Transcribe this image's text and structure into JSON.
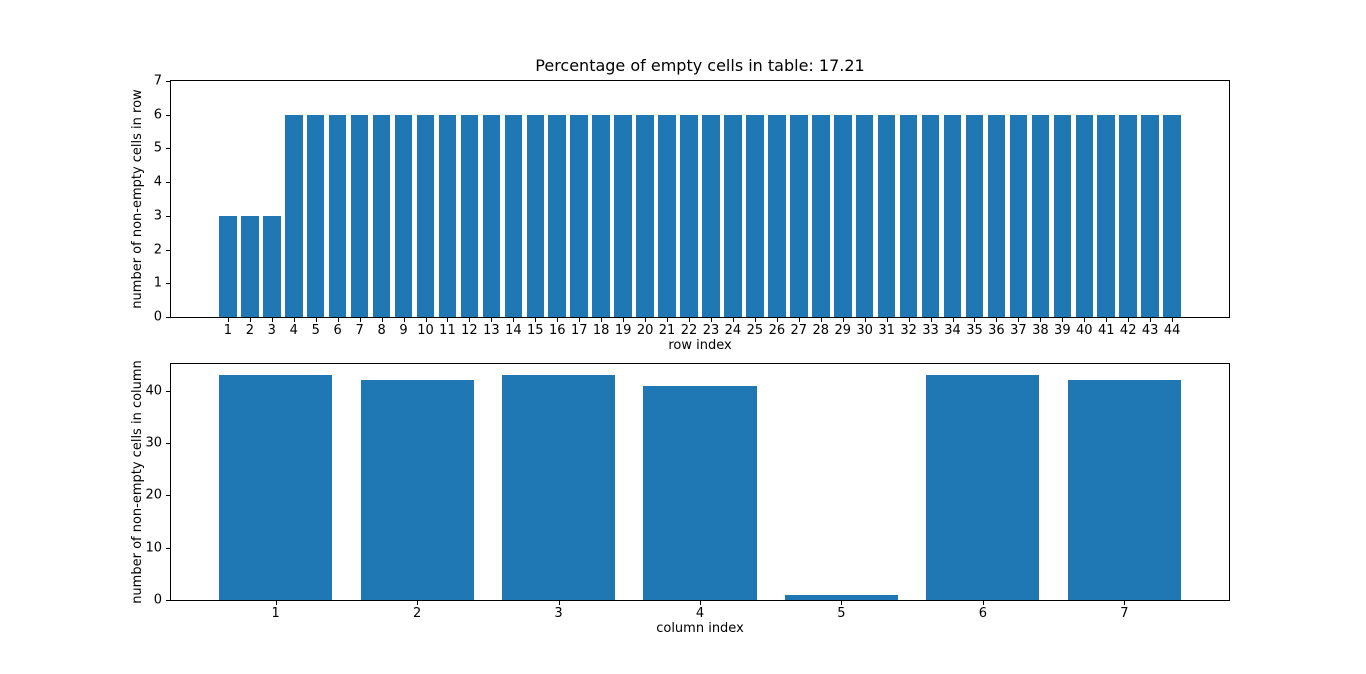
{
  "figure": {
    "background": "#ffffff",
    "spine_color": "#000000",
    "text_color": "#000000"
  },
  "chart_data": [
    {
      "type": "bar",
      "title": "Percentage of empty cells in table: 17.21",
      "xlabel": "row index",
      "ylabel": "number of non-empty cells in row",
      "categories": [
        1,
        2,
        3,
        4,
        5,
        6,
        7,
        8,
        9,
        10,
        11,
        12,
        13,
        14,
        15,
        16,
        17,
        18,
        19,
        20,
        21,
        22,
        23,
        24,
        25,
        26,
        27,
        28,
        29,
        30,
        31,
        32,
        33,
        34,
        35,
        36,
        37,
        38,
        39,
        40,
        41,
        42,
        43,
        44
      ],
      "values": [
        3,
        3,
        3,
        6,
        6,
        6,
        6,
        6,
        6,
        6,
        6,
        6,
        6,
        6,
        6,
        6,
        6,
        6,
        6,
        6,
        6,
        6,
        6,
        6,
        6,
        6,
        6,
        6,
        6,
        6,
        6,
        6,
        6,
        6,
        6,
        6,
        6,
        6,
        6,
        6,
        6,
        6,
        6,
        6
      ],
      "ylim": [
        0,
        7
      ],
      "yticks": [
        0,
        1,
        2,
        3,
        4,
        5,
        6,
        7
      ],
      "bar_color": "#1f77b4",
      "bar_rel_width": 0.8,
      "grid": false,
      "legend": null
    },
    {
      "type": "bar",
      "title": "",
      "xlabel": "column index",
      "ylabel": "number of non-empty cells in column",
      "categories": [
        1,
        2,
        3,
        4,
        5,
        6,
        7
      ],
      "values": [
        43,
        42,
        43,
        41,
        1,
        43,
        42
      ],
      "ylim": [
        0,
        45.15
      ],
      "yticks": [
        0,
        10,
        20,
        30,
        40
      ],
      "bar_color": "#1f77b4",
      "bar_rel_width": 0.8,
      "grid": false,
      "legend": null
    }
  ]
}
